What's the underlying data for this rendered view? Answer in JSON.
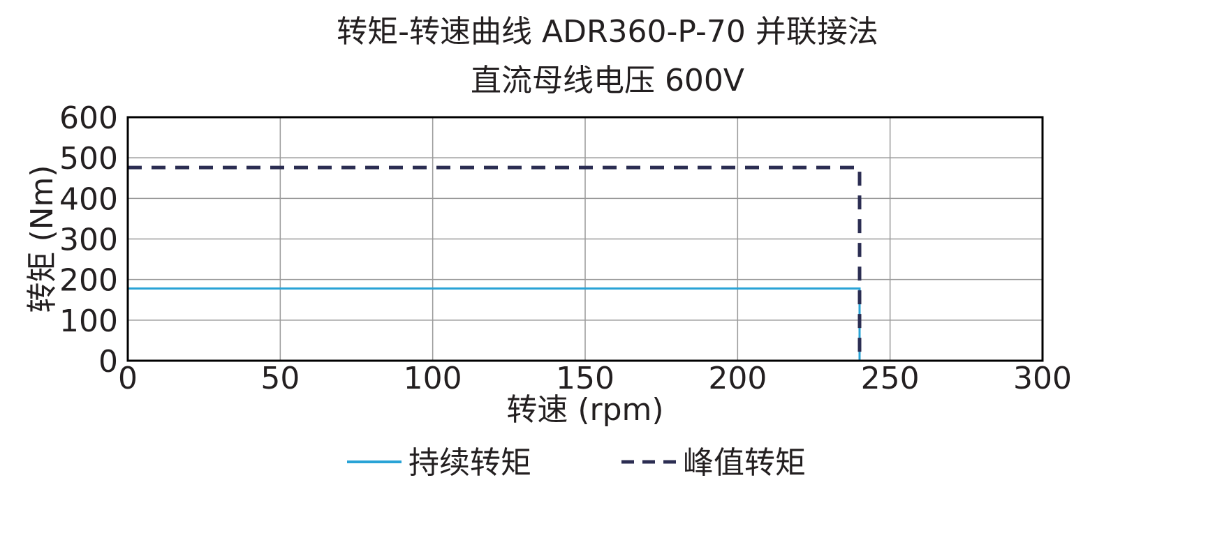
{
  "chart_data": {
    "type": "line",
    "title": "转矩-转速曲线 ADR360-P-70 并联接法",
    "subtitle": "直流母线电压 600V",
    "xlabel": "转速 (rpm)",
    "ylabel": "转矩 (Nm)",
    "xlim": [
      0,
      300
    ],
    "ylim": [
      0,
      600
    ],
    "xticks": [
      0,
      50,
      100,
      150,
      200,
      250,
      300
    ],
    "yticks": [
      0,
      100,
      200,
      300,
      400,
      500,
      600
    ],
    "grid": true,
    "legend_position": "bottom",
    "series": [
      {
        "name": "持续转矩",
        "color": "#29a3d6",
        "style": "solid",
        "x": [
          0,
          240,
          240
        ],
        "y": [
          178,
          178,
          0
        ]
      },
      {
        "name": "峰值转矩",
        "color": "#2b2d52",
        "style": "dashed",
        "x": [
          0,
          240,
          240
        ],
        "y": [
          476,
          476,
          0
        ]
      }
    ]
  }
}
